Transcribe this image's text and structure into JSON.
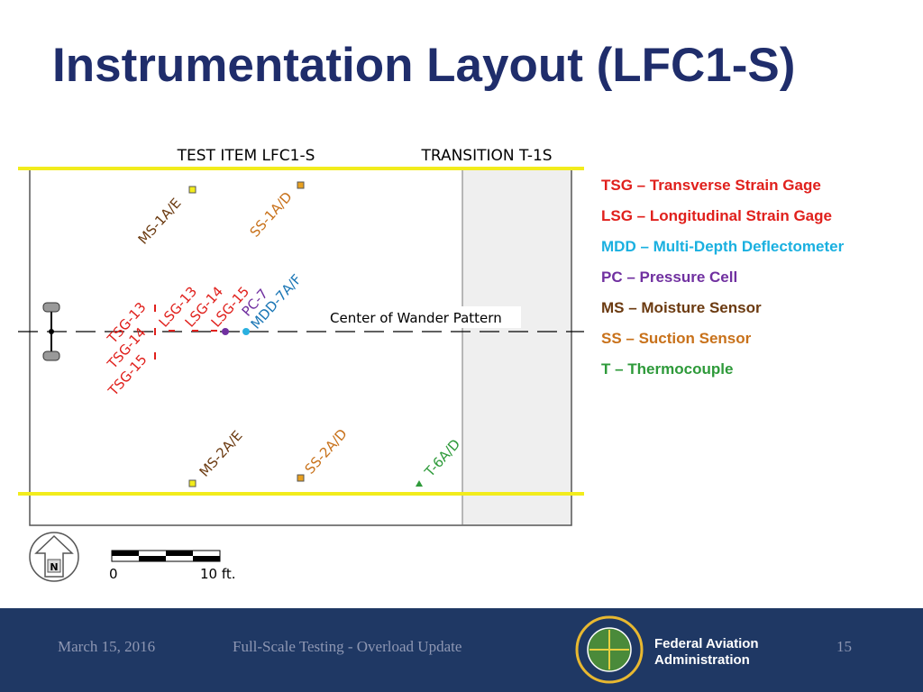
{
  "header": {
    "title": "Instrumentation Layout (LFC1-S)"
  },
  "diagram": {
    "headers": [
      "TEST ITEM LFC1-S",
      "TRANSITION T-1S"
    ],
    "center_label": "Center of Wander Pattern",
    "sensors": [
      "MS-1A/E",
      "SS-1A/D",
      "TSG-13",
      "TSG-14",
      "TSG-15",
      "LSG-13",
      "LSG-14",
      "LSG-15",
      "PC-7",
      "MDD-7A/F",
      "MS-2A/E",
      "SS-2A/D",
      "T-6A/D"
    ],
    "scale": {
      "start": "0",
      "end": "10 ft."
    },
    "north": "N"
  },
  "legend": [
    "TSG – Transverse Strain Gage",
    "LSG – Longitudinal Strain Gage",
    "MDD – Multi-Depth Deflectometer",
    "PC – Pressure Cell",
    "MS – Moisture Sensor",
    "SS – Suction Sensor",
    "T – Thermocouple"
  ],
  "footer": {
    "date": "March 15, 2016",
    "event": "Full-Scale Testing - Overload Update",
    "agency": [
      "Federal Aviation",
      "Administration"
    ],
    "page": "15"
  }
}
